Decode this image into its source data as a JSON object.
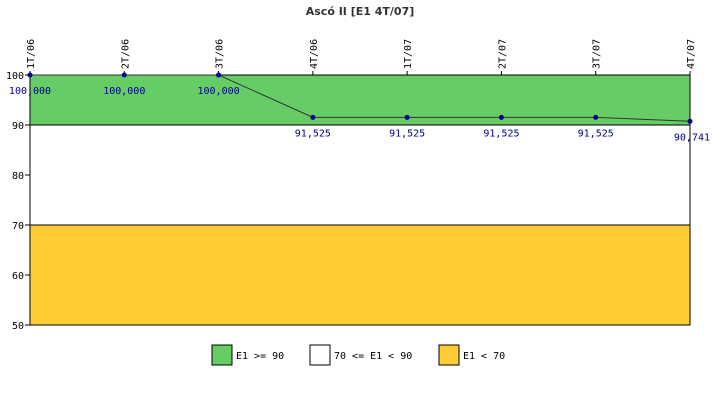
{
  "chart_data": {
    "type": "line",
    "title": "Ascó II [E1 4T/07]",
    "categories": [
      "1T/06",
      "2T/06",
      "3T/06",
      "4T/06",
      "1T/07",
      "2T/07",
      "3T/07",
      "4T/07"
    ],
    "series": [
      {
        "values": [
          100,
          100,
          100,
          91.525,
          91.525,
          91.525,
          91.525,
          90.741
        ],
        "labels": [
          "100,000",
          "100,000",
          "100,000",
          "91,525",
          "91,525",
          "91,525",
          "91,525",
          "90,741"
        ]
      }
    ],
    "ylim": [
      50,
      100
    ],
    "yticks": [
      "50",
      "60",
      "70",
      "80",
      "90",
      "100"
    ],
    "bands": [
      {
        "from": 90,
        "to": 100,
        "color": "#66cc66",
        "legend": "E1 >= 90"
      },
      {
        "from": 70,
        "to": 90,
        "color": "#ffffff",
        "legend": "70 <= E1 < 90"
      },
      {
        "from": 50,
        "to": 70,
        "color": "#ffcc33",
        "legend": "E1 < 70"
      }
    ],
    "line_color": "#333333",
    "marker_color": "#00008b",
    "legend_position": "bottom"
  }
}
